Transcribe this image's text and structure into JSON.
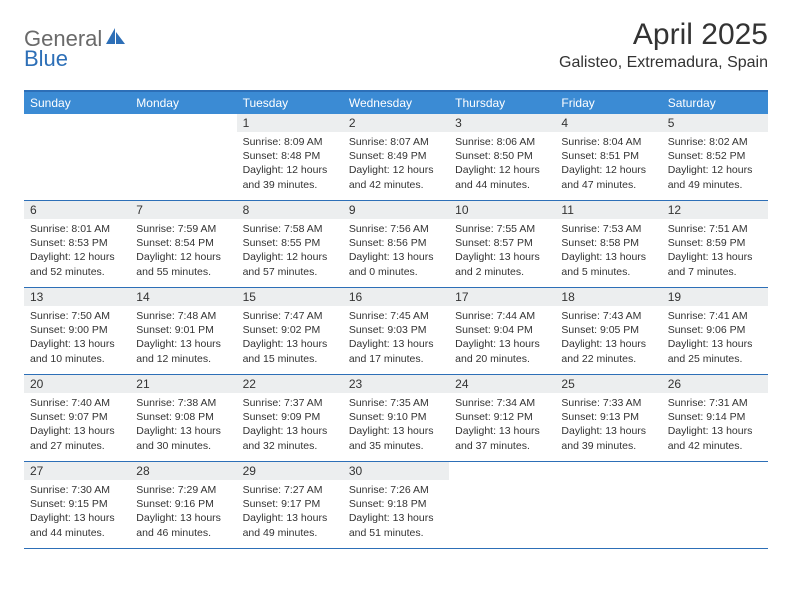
{
  "logo": {
    "part1": "General",
    "part2": "Blue"
  },
  "title": "April 2025",
  "location": "Galisteo, Extremadura, Spain",
  "colors": {
    "accent": "#3b8bd4",
    "rule": "#2d6fb7",
    "daybar": "#eceeef",
    "text": "#333333",
    "logo_gray": "#6a6a6a",
    "logo_blue": "#2d6fb7",
    "bg": "#ffffff"
  },
  "fonts": {
    "title_size_pt": 22,
    "location_size_pt": 12,
    "dayhead_size_pt": 9,
    "body_size_pt": 8
  },
  "dayNames": [
    "Sunday",
    "Monday",
    "Tuesday",
    "Wednesday",
    "Thursday",
    "Friday",
    "Saturday"
  ],
  "weeks": [
    [
      null,
      null,
      {
        "n": "1",
        "sr": "8:09 AM",
        "ss": "8:48 PM",
        "dl": "12 hours and 39 minutes."
      },
      {
        "n": "2",
        "sr": "8:07 AM",
        "ss": "8:49 PM",
        "dl": "12 hours and 42 minutes."
      },
      {
        "n": "3",
        "sr": "8:06 AM",
        "ss": "8:50 PM",
        "dl": "12 hours and 44 minutes."
      },
      {
        "n": "4",
        "sr": "8:04 AM",
        "ss": "8:51 PM",
        "dl": "12 hours and 47 minutes."
      },
      {
        "n": "5",
        "sr": "8:02 AM",
        "ss": "8:52 PM",
        "dl": "12 hours and 49 minutes."
      }
    ],
    [
      {
        "n": "6",
        "sr": "8:01 AM",
        "ss": "8:53 PM",
        "dl": "12 hours and 52 minutes."
      },
      {
        "n": "7",
        "sr": "7:59 AM",
        "ss": "8:54 PM",
        "dl": "12 hours and 55 minutes."
      },
      {
        "n": "8",
        "sr": "7:58 AM",
        "ss": "8:55 PM",
        "dl": "12 hours and 57 minutes."
      },
      {
        "n": "9",
        "sr": "7:56 AM",
        "ss": "8:56 PM",
        "dl": "13 hours and 0 minutes."
      },
      {
        "n": "10",
        "sr": "7:55 AM",
        "ss": "8:57 PM",
        "dl": "13 hours and 2 minutes."
      },
      {
        "n": "11",
        "sr": "7:53 AM",
        "ss": "8:58 PM",
        "dl": "13 hours and 5 minutes."
      },
      {
        "n": "12",
        "sr": "7:51 AM",
        "ss": "8:59 PM",
        "dl": "13 hours and 7 minutes."
      }
    ],
    [
      {
        "n": "13",
        "sr": "7:50 AM",
        "ss": "9:00 PM",
        "dl": "13 hours and 10 minutes."
      },
      {
        "n": "14",
        "sr": "7:48 AM",
        "ss": "9:01 PM",
        "dl": "13 hours and 12 minutes."
      },
      {
        "n": "15",
        "sr": "7:47 AM",
        "ss": "9:02 PM",
        "dl": "13 hours and 15 minutes."
      },
      {
        "n": "16",
        "sr": "7:45 AM",
        "ss": "9:03 PM",
        "dl": "13 hours and 17 minutes."
      },
      {
        "n": "17",
        "sr": "7:44 AM",
        "ss": "9:04 PM",
        "dl": "13 hours and 20 minutes."
      },
      {
        "n": "18",
        "sr": "7:43 AM",
        "ss": "9:05 PM",
        "dl": "13 hours and 22 minutes."
      },
      {
        "n": "19",
        "sr": "7:41 AM",
        "ss": "9:06 PM",
        "dl": "13 hours and 25 minutes."
      }
    ],
    [
      {
        "n": "20",
        "sr": "7:40 AM",
        "ss": "9:07 PM",
        "dl": "13 hours and 27 minutes."
      },
      {
        "n": "21",
        "sr": "7:38 AM",
        "ss": "9:08 PM",
        "dl": "13 hours and 30 minutes."
      },
      {
        "n": "22",
        "sr": "7:37 AM",
        "ss": "9:09 PM",
        "dl": "13 hours and 32 minutes."
      },
      {
        "n": "23",
        "sr": "7:35 AM",
        "ss": "9:10 PM",
        "dl": "13 hours and 35 minutes."
      },
      {
        "n": "24",
        "sr": "7:34 AM",
        "ss": "9:12 PM",
        "dl": "13 hours and 37 minutes."
      },
      {
        "n": "25",
        "sr": "7:33 AM",
        "ss": "9:13 PM",
        "dl": "13 hours and 39 minutes."
      },
      {
        "n": "26",
        "sr": "7:31 AM",
        "ss": "9:14 PM",
        "dl": "13 hours and 42 minutes."
      }
    ],
    [
      {
        "n": "27",
        "sr": "7:30 AM",
        "ss": "9:15 PM",
        "dl": "13 hours and 44 minutes."
      },
      {
        "n": "28",
        "sr": "7:29 AM",
        "ss": "9:16 PM",
        "dl": "13 hours and 46 minutes."
      },
      {
        "n": "29",
        "sr": "7:27 AM",
        "ss": "9:17 PM",
        "dl": "13 hours and 49 minutes."
      },
      {
        "n": "30",
        "sr": "7:26 AM",
        "ss": "9:18 PM",
        "dl": "13 hours and 51 minutes."
      },
      null,
      null,
      null
    ]
  ],
  "labels": {
    "sunrise": "Sunrise:",
    "sunset": "Sunset:",
    "daylight": "Daylight:"
  }
}
